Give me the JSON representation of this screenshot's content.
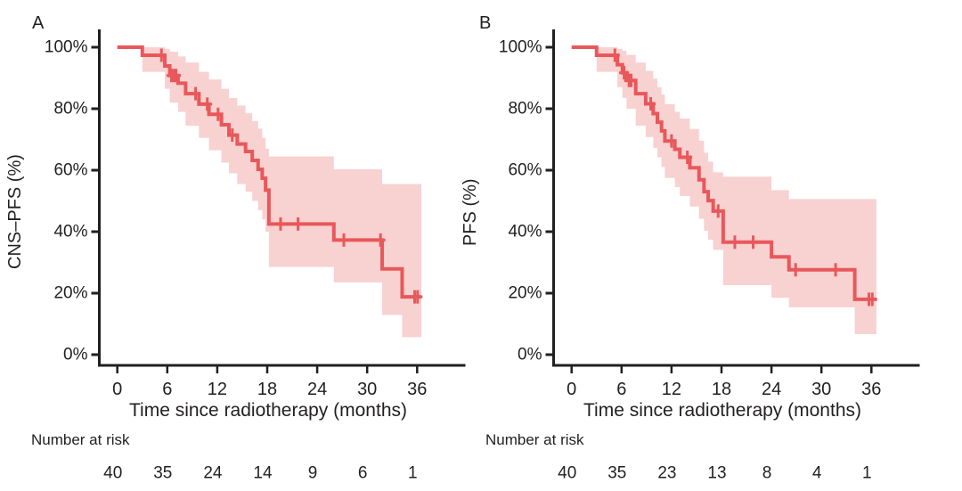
{
  "figure": {
    "background": "#ffffff",
    "text_color": "#221f20",
    "axis_color": "#221f20",
    "curve_color": "#e8585b",
    "band_color": "#f8d1d1"
  },
  "chart_data": [
    {
      "type": "line",
      "subtype": "kaplan-meier-step-curve-with-confidence-band",
      "panel_label": "A",
      "ylabel": "CNS–PFS (%)",
      "xlabel": "Time since radiotherapy (months)",
      "xlim": [
        0,
        38
      ],
      "ylim": [
        0,
        100
      ],
      "grid": false,
      "legend": "none",
      "x_ticks": [
        0,
        6,
        12,
        18,
        24,
        30,
        36
      ],
      "y_ticks": [
        100,
        80,
        60,
        40,
        20,
        0
      ],
      "y_tick_labels": [
        "100%",
        "80%",
        "60%",
        "40%",
        "20%",
        "0%"
      ],
      "risk_label": "Number at risk",
      "risk_counts": [
        40,
        35,
        24,
        14,
        9,
        6,
        1
      ],
      "steps_format": "[t_start_months, t_end_months, survival_pct, ci_lower_pct, ci_upper_pct]",
      "steps": [
        [
          0,
          3.0,
          100,
          100,
          100
        ],
        [
          3.0,
          5.7,
          97.4,
          92.0,
          100
        ],
        [
          5.7,
          6.3,
          93.9,
          86.5,
          99.5
        ],
        [
          6.3,
          7.3,
          90.8,
          82.0,
          98.5
        ],
        [
          7.3,
          8.2,
          88.3,
          79.0,
          97.0
        ],
        [
          8.2,
          9.8,
          84.9,
          74.5,
          95.0
        ],
        [
          9.8,
          11.0,
          81.5,
          70.5,
          92.0
        ],
        [
          11.0,
          12.5,
          78.2,
          66.5,
          89.5
        ],
        [
          12.5,
          13.4,
          74.8,
          62.5,
          86.5
        ],
        [
          13.4,
          14.4,
          71.4,
          59.0,
          83.5
        ],
        [
          14.4,
          15.4,
          68.5,
          55.5,
          81.0
        ],
        [
          15.4,
          16.2,
          66.1,
          53.0,
          78.5
        ],
        [
          16.2,
          16.9,
          63.2,
          50.0,
          76.0
        ],
        [
          16.9,
          17.4,
          60.3,
          47.0,
          73.5
        ],
        [
          17.4,
          17.8,
          57.4,
          44.0,
          70.5
        ],
        [
          17.8,
          18.2,
          53.5,
          40.0,
          67.0
        ],
        [
          18.2,
          26.0,
          42.5,
          28.5,
          64.5
        ],
        [
          26.0,
          31.8,
          37.3,
          23.5,
          60.3
        ],
        [
          31.8,
          34.2,
          27.9,
          12.9,
          55.5
        ],
        [
          34.2,
          36.5,
          18.8,
          5.7,
          55.5
        ]
      ],
      "censors_format": "[t_months, survival_pct]",
      "censors": [
        [
          5.3,
          97.4
        ],
        [
          6.5,
          90.8
        ],
        [
          6.8,
          90.8
        ],
        [
          7.05,
          90.8
        ],
        [
          9.4,
          84.9
        ],
        [
          10.8,
          81.5
        ],
        [
          12.1,
          78.2
        ],
        [
          13.8,
          71.4
        ],
        [
          19.6,
          42.5
        ],
        [
          21.7,
          42.5
        ],
        [
          27.2,
          37.3
        ],
        [
          31.6,
          37.3
        ],
        [
          35.7,
          18.8
        ],
        [
          36.05,
          18.8
        ]
      ]
    },
    {
      "type": "line",
      "subtype": "kaplan-meier-step-curve-with-confidence-band",
      "panel_label": "B",
      "ylabel": "PFS (%)",
      "xlabel": "Time since radiotherapy (months)",
      "xlim": [
        0,
        38
      ],
      "ylim": [
        0,
        100
      ],
      "grid": false,
      "legend": "none",
      "x_ticks": [
        0,
        6,
        12,
        18,
        24,
        30,
        36
      ],
      "y_ticks": [
        100,
        80,
        60,
        40,
        20,
        0
      ],
      "y_tick_labels": [
        "100%",
        "80%",
        "60%",
        "40%",
        "20%",
        "0%"
      ],
      "risk_label": "Number at risk",
      "risk_counts": [
        40,
        35,
        23,
        13,
        8,
        4,
        1
      ],
      "steps_format": "[t_start_months, t_end_months, survival_pct, ci_lower_pct, ci_upper_pct]",
      "steps": [
        [
          0,
          3.0,
          100,
          100,
          100
        ],
        [
          3.0,
          5.5,
          97.4,
          92.0,
          100
        ],
        [
          5.5,
          6.1,
          94.3,
          87.0,
          99.5
        ],
        [
          6.1,
          6.6,
          91.7,
          83.5,
          98.8
        ],
        [
          6.6,
          7.7,
          89.2,
          80.0,
          97.5
        ],
        [
          7.7,
          8.9,
          84.9,
          74.5,
          95.0
        ],
        [
          8.9,
          9.8,
          81.6,
          70.8,
          92.3
        ],
        [
          9.8,
          10.3,
          78.4,
          67.2,
          89.8
        ],
        [
          10.3,
          10.8,
          75.6,
          64.2,
          87.0
        ],
        [
          10.8,
          11.2,
          72.8,
          61.0,
          84.6
        ],
        [
          11.2,
          12.4,
          69.5,
          57.5,
          81.5
        ],
        [
          12.4,
          13.0,
          66.8,
          54.5,
          79.0
        ],
        [
          13.0,
          14.2,
          64.2,
          51.6,
          76.8
        ],
        [
          14.2,
          15.3,
          60.8,
          48.2,
          73.4
        ],
        [
          15.3,
          15.9,
          56.9,
          44.2,
          69.6
        ],
        [
          15.9,
          16.4,
          53.0,
          40.3,
          65.7
        ],
        [
          16.4,
          17.0,
          50.1,
          37.4,
          62.8
        ],
        [
          17.0,
          18.2,
          46.7,
          34.1,
          59.3
        ],
        [
          18.2,
          24.0,
          36.6,
          22.6,
          57.9
        ],
        [
          24.0,
          26.1,
          31.8,
          18.5,
          53.5
        ],
        [
          26.1,
          34.0,
          27.6,
          15.4,
          50.6
        ],
        [
          34.0,
          36.6,
          18.0,
          6.7,
          50.6
        ]
      ],
      "censors_format": "[t_months, survival_pct]",
      "censors": [
        [
          5.2,
          97.4
        ],
        [
          6.3,
          91.7
        ],
        [
          6.9,
          89.2
        ],
        [
          7.15,
          89.2
        ],
        [
          9.5,
          81.6
        ],
        [
          12.0,
          69.5
        ],
        [
          13.9,
          64.2
        ],
        [
          17.6,
          46.7
        ],
        [
          19.6,
          36.6
        ],
        [
          21.8,
          36.6
        ],
        [
          26.9,
          27.6
        ],
        [
          31.7,
          27.6
        ],
        [
          35.7,
          18.0
        ],
        [
          36.1,
          18.0
        ]
      ]
    }
  ]
}
